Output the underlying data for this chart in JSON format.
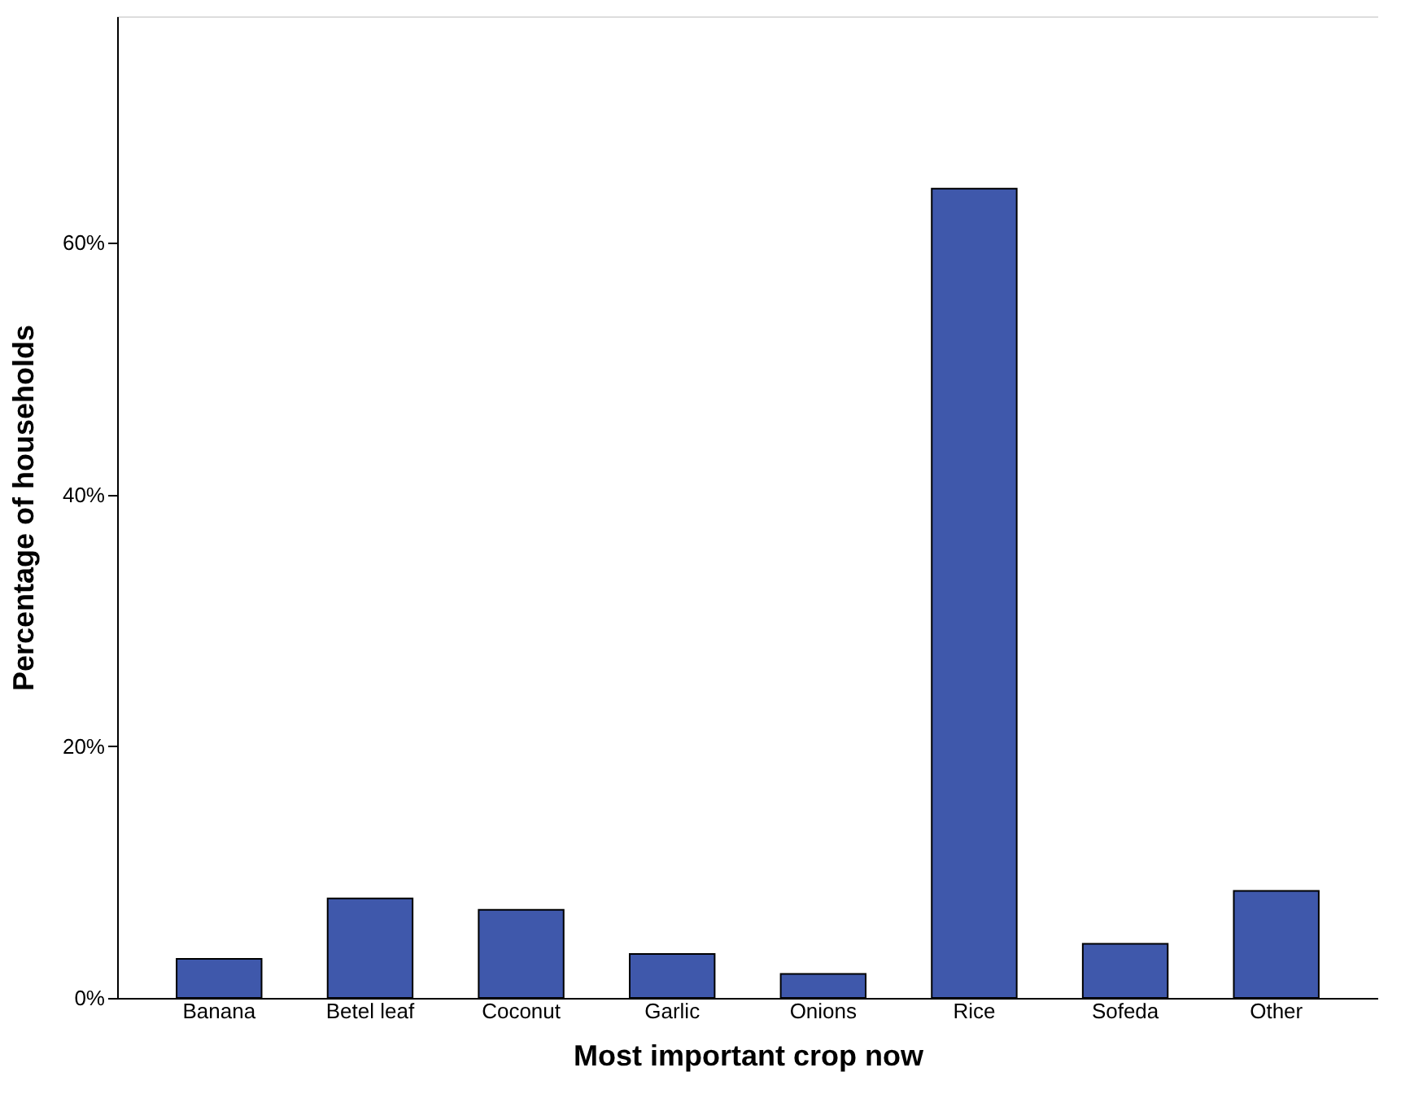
{
  "chart_data": {
    "type": "bar",
    "xlabel": "Most important crop now",
    "ylabel": "Percentage of households",
    "categories": [
      "Banana",
      "Betel leaf",
      "Coconut",
      "Garlic",
      "Onions",
      "Rice",
      "Sofeda",
      "Other"
    ],
    "values": [
      3.1,
      7.9,
      7.0,
      3.5,
      1.9,
      64.3,
      4.3,
      8.5
    ],
    "color": "#3f58ab",
    "ylim": [
      0,
      78
    ],
    "yticks": [
      {
        "value": 0,
        "label": "0%"
      },
      {
        "value": 20,
        "label": "20%"
      },
      {
        "value": 40,
        "label": "40%"
      },
      {
        "value": 60,
        "label": "60%"
      }
    ],
    "grid": false
  }
}
